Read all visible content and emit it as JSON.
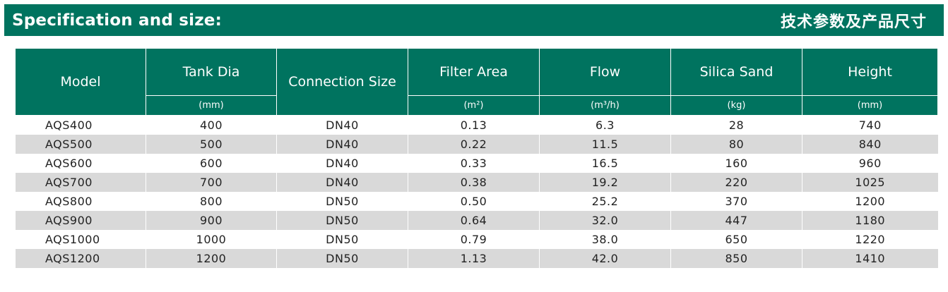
{
  "header": {
    "title_en": "Specification and size:",
    "title_cn": "技术参数及产品尺寸"
  },
  "colors": {
    "accent": "#00735f",
    "stripe": "#d9d9d9"
  },
  "table": {
    "columns": [
      {
        "label": "Model",
        "unit": ""
      },
      {
        "label": "Tank Dia",
        "unit": "(mm)"
      },
      {
        "label": "Connection Size",
        "unit": ""
      },
      {
        "label": "Filter Area",
        "unit": "(m²)"
      },
      {
        "label": "Flow",
        "unit": "(m³/h)"
      },
      {
        "label": "Silica Sand",
        "unit": "(kg)"
      },
      {
        "label": "Height",
        "unit": "(mm)"
      }
    ],
    "rows": [
      [
        "AQS400",
        "400",
        "DN40",
        "0.13",
        "6.3",
        "28",
        "740"
      ],
      [
        "AQS500",
        "500",
        "DN40",
        "0.22",
        "11.5",
        "80",
        "840"
      ],
      [
        "AQS600",
        "600",
        "DN40",
        "0.33",
        "16.5",
        "160",
        "960"
      ],
      [
        "AQS700",
        "700",
        "DN40",
        "0.38",
        "19.2",
        "220",
        "1025"
      ],
      [
        "AQS800",
        "800",
        "DN50",
        "0.50",
        "25.2",
        "370",
        "1200"
      ],
      [
        "AQS900",
        "900",
        "DN50",
        "0.64",
        "32.0",
        "447",
        "1180"
      ],
      [
        "AQS1000",
        "1000",
        "DN50",
        "0.79",
        "38.0",
        "650",
        "1220"
      ],
      [
        "AQS1200",
        "1200",
        "DN50",
        "1.13",
        "42.0",
        "850",
        "1410"
      ]
    ]
  }
}
